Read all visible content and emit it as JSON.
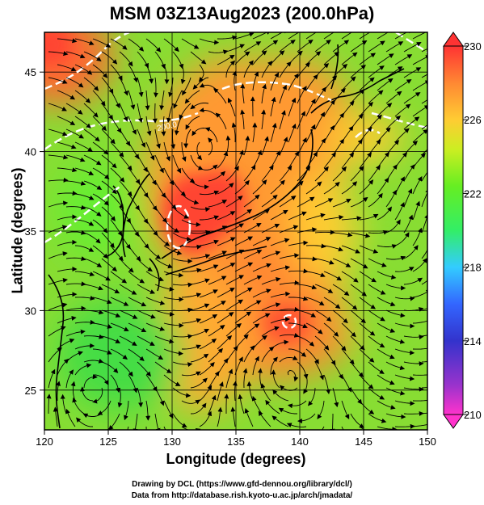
{
  "title": "MSM 03Z13Aug2023 (200.0hPa)",
  "xlabel": "Longitude (degrees)",
  "ylabel": "Latitude  (degrees)",
  "credit_line1": "Drawing by DCL (https://www.gfd-dennou.org/library/dcl/)",
  "credit_line2": "Data from http://database.rish.kyoto-u.ac.jp/arch/jmadata/",
  "contour_label": "200.0",
  "colors": {
    "scale": [
      "#ff33cc",
      "#9933cc",
      "#3333cc",
      "#3366ff",
      "#33ccff",
      "#33ffcc",
      "#33ee33",
      "#66ee22",
      "#aaee22",
      "#eeee22",
      "#ffcc33",
      "#ff9933",
      "#ff6633",
      "#ff3333"
    ]
  },
  "chart_data": {
    "type": "heatmap",
    "title": "MSM 03Z13Aug2023 (200.0hPa)",
    "xlabel": "Longitude (degrees)",
    "ylabel": "Latitude  (degrees)",
    "xlim": [
      120,
      150
    ],
    "ylim": [
      22.5,
      47.5
    ],
    "xticks": [
      120,
      125,
      130,
      135,
      140,
      145,
      150
    ],
    "yticks": [
      25,
      30,
      35,
      40,
      45
    ],
    "colorbar": {
      "min": 210,
      "max": 230,
      "ticks": [
        210,
        214,
        218,
        222,
        226,
        230
      ],
      "extend": "both"
    },
    "grid": true,
    "overlay": "streamlines",
    "highlights": [
      {
        "lon": 131.0,
        "lat": 36.0,
        "value": 229.5
      },
      {
        "lon": 134.0,
        "lat": 38.5,
        "value": 229.0
      },
      {
        "lon": 139.0,
        "lat": 30.0,
        "value": 228.5
      },
      {
        "lon": 121.0,
        "lat": 46.5,
        "value": 229.5
      },
      {
        "lon": 145.5,
        "lat": 41.5,
        "value": 227.5
      }
    ]
  }
}
